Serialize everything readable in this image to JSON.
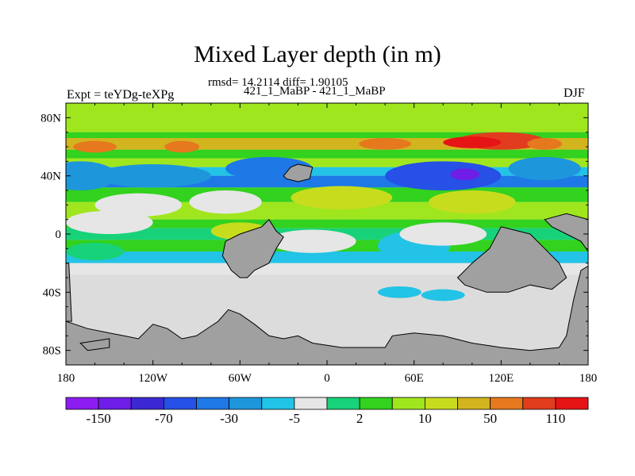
{
  "chart_data": {
    "type": "heatmap",
    "title": "Mixed Layer depth (in m)",
    "stats_line": "rmsd= 14.2114 diff= 1.90105",
    "case_label": "421_1_MaBP - 421_1_MaBP",
    "left_label": "Expt = teYDg-teXPg",
    "right_label": "DJF",
    "xlabel": "",
    "ylabel": "",
    "xlim": [
      -180,
      180
    ],
    "ylim": [
      -90,
      90
    ],
    "x_ticks": [
      {
        "value": -180,
        "label": "180"
      },
      {
        "value": -120,
        "label": "120W"
      },
      {
        "value": -60,
        "label": "60W"
      },
      {
        "value": 0,
        "label": "0"
      },
      {
        "value": 60,
        "label": "60E"
      },
      {
        "value": 120,
        "label": "120E"
      },
      {
        "value": 180,
        "label": "180"
      }
    ],
    "y_ticks": [
      {
        "value": 80,
        "label": "80N"
      },
      {
        "value": 40,
        "label": "40N"
      },
      {
        "value": 0,
        "label": "0"
      },
      {
        "value": -40,
        "label": "40S"
      },
      {
        "value": -80,
        "label": "80S"
      }
    ],
    "colorbar": {
      "colors": [
        "#8c1cf0",
        "#6e1ee6",
        "#3c28d2",
        "#2650e6",
        "#1e78e6",
        "#1e96dc",
        "#22c3e6",
        "#e6e6e6",
        "#18d27a",
        "#32d21e",
        "#a0e61e",
        "#c8dc1e",
        "#d2b41e",
        "#e6781e",
        "#e13c1e",
        "#e61414"
      ],
      "labels": [
        "-150",
        "-70",
        "-30",
        "-5",
        "2",
        "10",
        "50",
        "110"
      ]
    },
    "land_color": "#a0a0a0",
    "default_fill": "#dcdcdc"
  }
}
